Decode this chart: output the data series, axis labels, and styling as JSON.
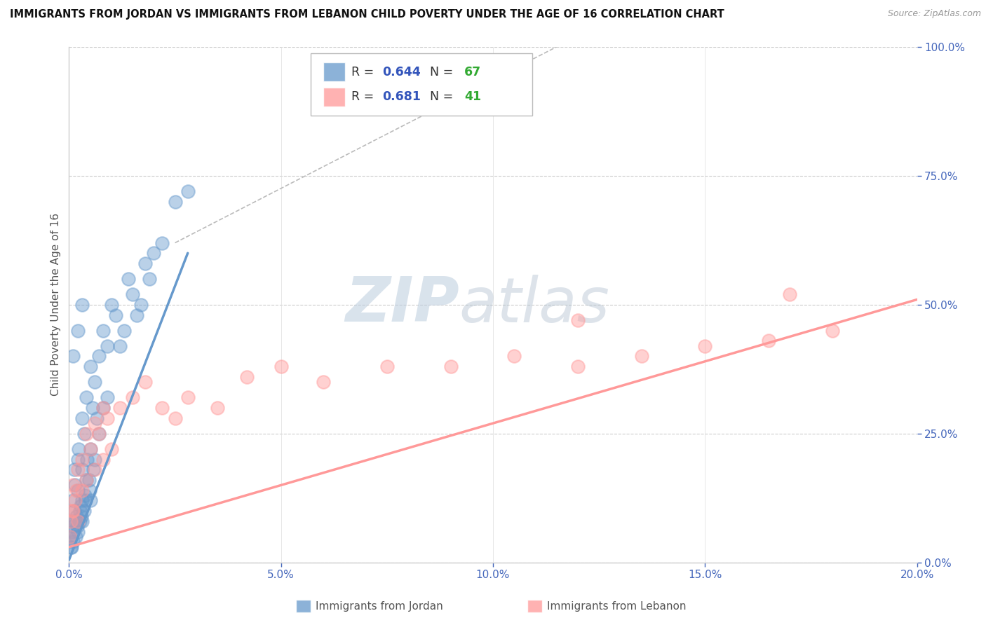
{
  "title": "IMMIGRANTS FROM JORDAN VS IMMIGRANTS FROM LEBANON CHILD POVERTY UNDER THE AGE OF 16 CORRELATION CHART",
  "source": "Source: ZipAtlas.com",
  "ylabel": "Child Poverty Under the Age of 16",
  "jordan_color": "#6699CC",
  "lebanon_color": "#FF9999",
  "jordan_label": "Immigrants from Jordan",
  "lebanon_label": "Immigrants from Lebanon",
  "jordan_R": 0.644,
  "jordan_N": 67,
  "lebanon_R": 0.681,
  "lebanon_N": 41,
  "legend_R_color": "#3355BB",
  "legend_N_color": "#33AA33",
  "watermark_zip": "ZIP",
  "watermark_atlas": "atlas",
  "watermark_color_zip": "#BBCCDD",
  "watermark_color_atlas": "#AABBCC",
  "xlim": [
    0.0,
    0.2
  ],
  "ylim": [
    0.0,
    1.0
  ],
  "xticks": [
    0.0,
    0.05,
    0.1,
    0.15,
    0.2
  ],
  "yticks": [
    0.0,
    0.25,
    0.5,
    0.75,
    1.0
  ],
  "jordan_line_x": [
    0.0,
    0.028
  ],
  "jordan_line_y": [
    0.005,
    0.6
  ],
  "lebanon_line_x": [
    0.0,
    0.2
  ],
  "lebanon_line_y": [
    0.03,
    0.51
  ],
  "diag_line_x": [
    0.025,
    0.115
  ],
  "diag_line_y": [
    0.62,
    1.0
  ],
  "jordan_scatter_x": [
    0.0003,
    0.0005,
    0.0007,
    0.001,
    0.001,
    0.0012,
    0.0013,
    0.0015,
    0.0015,
    0.002,
    0.002,
    0.002,
    0.0022,
    0.0025,
    0.003,
    0.003,
    0.003,
    0.003,
    0.0035,
    0.004,
    0.004,
    0.0042,
    0.005,
    0.005,
    0.005,
    0.0055,
    0.006,
    0.006,
    0.0065,
    0.007,
    0.007,
    0.008,
    0.008,
    0.009,
    0.009,
    0.01,
    0.011,
    0.012,
    0.013,
    0.014,
    0.015,
    0.016,
    0.017,
    0.018,
    0.019,
    0.02,
    0.022,
    0.025,
    0.028,
    0.0008,
    0.0018,
    0.0028,
    0.0038,
    0.0048,
    0.0058,
    0.0009,
    0.0019,
    0.0029,
    0.0039,
    0.0049,
    0.0006,
    0.0016,
    0.0026,
    0.0036,
    0.001,
    0.002,
    0.003
  ],
  "jordan_scatter_y": [
    0.05,
    0.03,
    0.08,
    0.12,
    0.07,
    0.1,
    0.18,
    0.08,
    0.15,
    0.2,
    0.14,
    0.06,
    0.22,
    0.1,
    0.28,
    0.18,
    0.12,
    0.08,
    0.25,
    0.32,
    0.16,
    0.2,
    0.38,
    0.22,
    0.12,
    0.3,
    0.35,
    0.2,
    0.28,
    0.4,
    0.25,
    0.45,
    0.3,
    0.42,
    0.32,
    0.5,
    0.48,
    0.42,
    0.45,
    0.55,
    0.52,
    0.48,
    0.5,
    0.58,
    0.55,
    0.6,
    0.62,
    0.7,
    0.72,
    0.06,
    0.09,
    0.11,
    0.13,
    0.16,
    0.18,
    0.04,
    0.07,
    0.09,
    0.12,
    0.14,
    0.03,
    0.05,
    0.08,
    0.1,
    0.4,
    0.45,
    0.5
  ],
  "lebanon_scatter_x": [
    0.0003,
    0.0005,
    0.001,
    0.001,
    0.0015,
    0.002,
    0.002,
    0.003,
    0.003,
    0.004,
    0.005,
    0.006,
    0.007,
    0.008,
    0.009,
    0.01,
    0.012,
    0.015,
    0.018,
    0.022,
    0.025,
    0.028,
    0.035,
    0.042,
    0.05,
    0.06,
    0.075,
    0.09,
    0.105,
    0.12,
    0.135,
    0.15,
    0.165,
    0.18,
    0.0008,
    0.0018,
    0.004,
    0.006,
    0.008,
    0.12,
    0.17
  ],
  "lebanon_scatter_y": [
    0.05,
    0.08,
    0.1,
    0.15,
    0.12,
    0.18,
    0.08,
    0.14,
    0.2,
    0.16,
    0.22,
    0.18,
    0.25,
    0.2,
    0.28,
    0.22,
    0.3,
    0.32,
    0.35,
    0.3,
    0.28,
    0.32,
    0.3,
    0.36,
    0.38,
    0.35,
    0.38,
    0.38,
    0.4,
    0.38,
    0.4,
    0.42,
    0.43,
    0.45,
    0.1,
    0.14,
    0.25,
    0.27,
    0.3,
    0.47,
    0.52
  ]
}
